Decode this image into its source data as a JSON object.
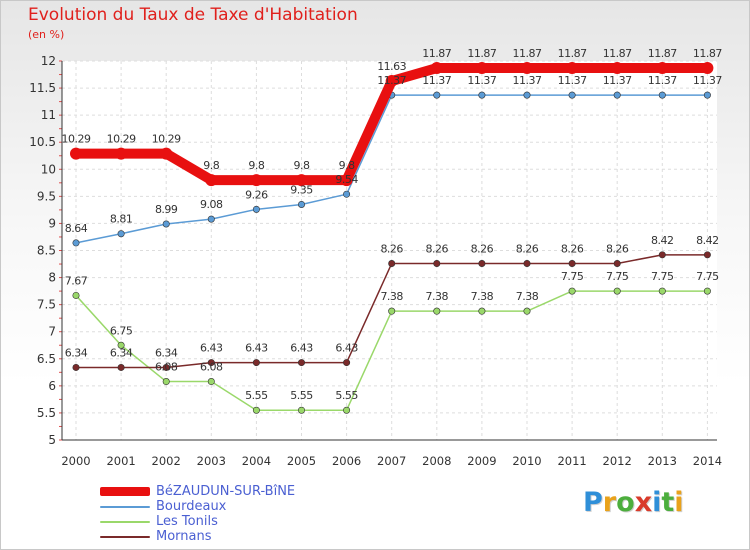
{
  "chart_data": {
    "type": "line",
    "title": "Evolution du Taux de Taxe d'Habitation",
    "subtitle": "(en %)",
    "xlabel": "",
    "ylabel": "(en %)",
    "ylim": [
      5,
      12
    ],
    "grid": true,
    "legend_position": "bottom-left",
    "x": [
      "2000",
      "2001",
      "2002",
      "2003",
      "2004",
      "2005",
      "2006",
      "2007",
      "2008",
      "2009",
      "2010",
      "2011",
      "2012",
      "2013",
      "2014"
    ],
    "y_ticks": [
      5,
      5.5,
      6,
      6.5,
      7,
      7.5,
      8,
      8.5,
      9,
      9.5,
      10,
      10.5,
      11,
      11.5,
      12
    ],
    "series": [
      {
        "name": "BéZAUDUN-SUR-BîNE",
        "color": "#e81010",
        "values": [
          10.29,
          10.29,
          10.29,
          9.8,
          9.8,
          9.8,
          9.8,
          11.63,
          11.87,
          11.87,
          11.87,
          11.87,
          11.87,
          11.87,
          11.87
        ],
        "labels": [
          "10.29",
          "10.29",
          "10.29",
          "9.8",
          "9.8",
          "9.8",
          "9.8",
          "11.63",
          "11.87",
          "11.87",
          "11.87",
          "11.87",
          "11.87",
          "11.87",
          "11.87"
        ]
      },
      {
        "name": "Bourdeaux",
        "color": "#5b9bd5",
        "values": [
          8.64,
          8.81,
          8.99,
          9.08,
          9.26,
          9.35,
          9.54,
          11.37,
          11.37,
          11.37,
          11.37,
          11.37,
          11.37,
          11.37,
          11.37
        ],
        "labels": [
          "8.64",
          "8.81",
          "8.99",
          "9.08",
          "9.26",
          "9.35",
          "9.54",
          "11.37",
          "11.37",
          "11.37",
          "11.37",
          "11.37",
          "11.37",
          "11.37",
          "11.37"
        ]
      },
      {
        "name": "Les Tonils",
        "color": "#9ad86a",
        "values": [
          7.67,
          6.75,
          6.08,
          6.08,
          5.55,
          5.55,
          5.55,
          7.38,
          7.38,
          7.38,
          7.38,
          7.75,
          7.75,
          7.75,
          7.75
        ],
        "labels": [
          "7.67",
          "6.75",
          "6.08",
          "6.08",
          "5.55",
          "5.55",
          "5.55",
          "7.38",
          "7.38",
          "7.38",
          "7.38",
          "7.75",
          "7.75",
          "7.75",
          "7.75"
        ]
      },
      {
        "name": "Mornans",
        "color": "#7a2a2a",
        "values": [
          6.34,
          6.34,
          6.34,
          6.43,
          6.43,
          6.43,
          6.43,
          8.26,
          8.26,
          8.26,
          8.26,
          8.26,
          8.26,
          8.42,
          8.42
        ],
        "labels": [
          "6.34",
          "6.34",
          "6.34",
          "6.43",
          "6.43",
          "6.43",
          "6.43",
          "8.26",
          "8.26",
          "8.26",
          "8.26",
          "8.26",
          "8.26",
          "8.42",
          "8.42"
        ]
      }
    ]
  },
  "logo": {
    "letters": [
      "P",
      "r",
      "o",
      "x",
      "i",
      "t",
      "i"
    ],
    "colors": [
      "#2f8fd8",
      "#e9a21b",
      "#4cae3d",
      "#d93a2b",
      "#2f8fd8",
      "#4cae3d",
      "#e9a21b"
    ]
  }
}
